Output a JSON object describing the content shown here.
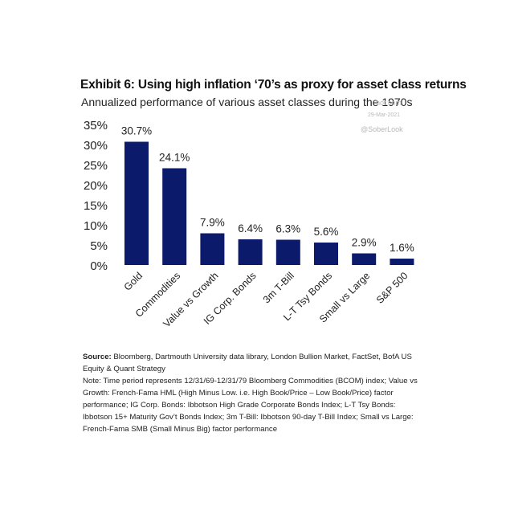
{
  "page": {
    "title": "Exhibit 6: Using high inflation ‘70’s as proxy for asset class returns",
    "subtitle": "Annualized performance of various asset classes during the 1970s",
    "watermarks": [
      "hot.com",
      "29-Mar-2021",
      "@SoberLook"
    ],
    "source_label": "Source:",
    "source_text": " Bloomberg, Dartmouth University data library, London Bullion Market, FactSet, BofA US Equity & Quant Strategy",
    "note_text": "Note: Time period represents 12/31/69-12/31/79 Bloomberg Commodities (BCOM) index; Value vs Growth: French-Fama HML (High Minus Low. i.e. High Book/Price – Low Book/Price) factor performance; IG Corp. Bonds: Ibbotson High Grade Corporate Bonds Index; L-T Tsy Bonds: Ibbotson 15+ Maturity Gov’t Bonds Index; 3m T-Bill: Ibbotson 90-day T-Bill Index; Small vs Large: French-Fama SMB (Small Minus Big) factor performance"
  },
  "chart_data": {
    "type": "bar",
    "title": "Exhibit 6: Using high inflation ‘70’s as proxy for asset class returns",
    "subtitle": "Annualized performance of various asset classes during the 1970s",
    "categories": [
      "Gold",
      "Commodities",
      "Value vs Growth",
      "IG Corp. Bonds",
      "3m T-Bill",
      "L-T Tsy Bonds",
      "Small vs Large",
      "S&P 500"
    ],
    "values": [
      30.7,
      24.1,
      7.9,
      6.4,
      6.3,
      5.6,
      2.9,
      1.6
    ],
    "data_labels": [
      "30.7%",
      "24.1%",
      "7.9%",
      "6.4%",
      "6.3%",
      "5.6%",
      "2.9%",
      "1.6%"
    ],
    "y_ticks": [
      0,
      5,
      10,
      15,
      20,
      25,
      30,
      35
    ],
    "y_tick_labels": [
      "0%",
      "5%",
      "10%",
      "15%",
      "20%",
      "25%",
      "30%",
      "35%"
    ],
    "ylim": [
      0,
      35
    ],
    "xlabel": "",
    "ylabel": "",
    "grid": false,
    "legend": "none",
    "bar_color": "#0b1a6b"
  }
}
